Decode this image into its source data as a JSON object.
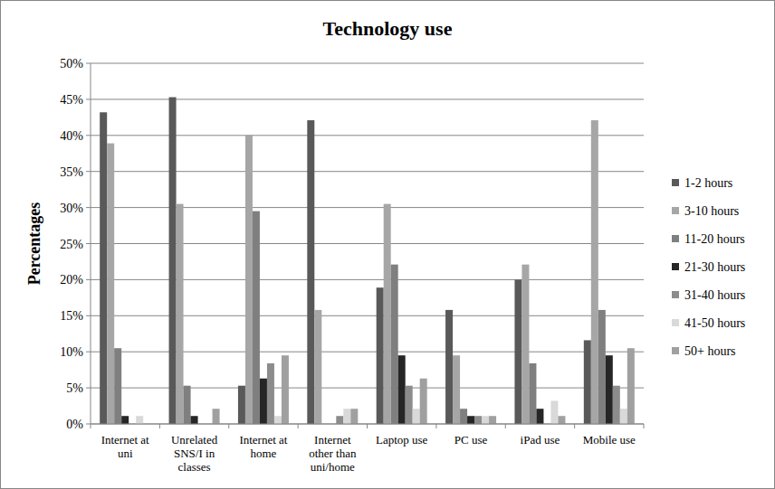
{
  "chart_data": {
    "type": "bar",
    "title": "Technology use",
    "y_label": "Percentages",
    "categories": [
      "Internet at uni",
      "Unrelated SNS/I in classes",
      "Internet at home",
      "Internet other than uni/home",
      "Laptop use",
      "PC use",
      "iPad use",
      "Mobile use"
    ],
    "series": [
      {
        "name": "1-2 hours",
        "color": "#595959",
        "values": [
          43.2,
          45.3,
          5.3,
          42.1,
          18.9,
          15.8,
          20.0,
          11.6
        ]
      },
      {
        "name": "3-10 hours",
        "color": "#a6a6a6",
        "values": [
          38.9,
          30.5,
          40.0,
          15.8,
          30.5,
          9.5,
          22.1,
          42.1
        ]
      },
      {
        "name": "11-20 hours",
        "color": "#7f7f7f",
        "values": [
          10.5,
          5.3,
          29.5,
          0,
          22.1,
          2.1,
          8.4,
          15.8
        ]
      },
      {
        "name": "21-30 hours",
        "color": "#262626",
        "values": [
          1.1,
          1.1,
          6.3,
          0,
          9.5,
          1.1,
          2.1,
          9.5
        ]
      },
      {
        "name": "31-40 hours",
        "color": "#8c8c8c",
        "values": [
          0,
          0,
          8.4,
          1.1,
          5.3,
          1.1,
          0,
          5.3
        ]
      },
      {
        "name": "41-50 hours",
        "color": "#d9d9d9",
        "values": [
          1.1,
          0,
          1.1,
          2.1,
          2.1,
          1.1,
          3.2,
          2.1
        ]
      },
      {
        "name": "50+ hours",
        "color": "#a0a0a0",
        "values": [
          0,
          2.1,
          9.5,
          2.1,
          6.3,
          1.1,
          1.1,
          10.5
        ]
      }
    ],
    "ylim": [
      0,
      50
    ],
    "yticks": [
      {
        "value": 0,
        "label": "0%"
      },
      {
        "value": 5,
        "label": "5%"
      },
      {
        "value": 10,
        "label": "10%"
      },
      {
        "value": 15,
        "label": "15%"
      },
      {
        "value": 20,
        "label": "20%"
      },
      {
        "value": 25,
        "label": "25%"
      },
      {
        "value": 30,
        "label": "30%"
      },
      {
        "value": 35,
        "label": "35%"
      },
      {
        "value": 40,
        "label": "40%"
      },
      {
        "value": 45,
        "label": "45%"
      },
      {
        "value": 50,
        "label": "50%"
      }
    ],
    "grid": true,
    "legend": "right"
  }
}
